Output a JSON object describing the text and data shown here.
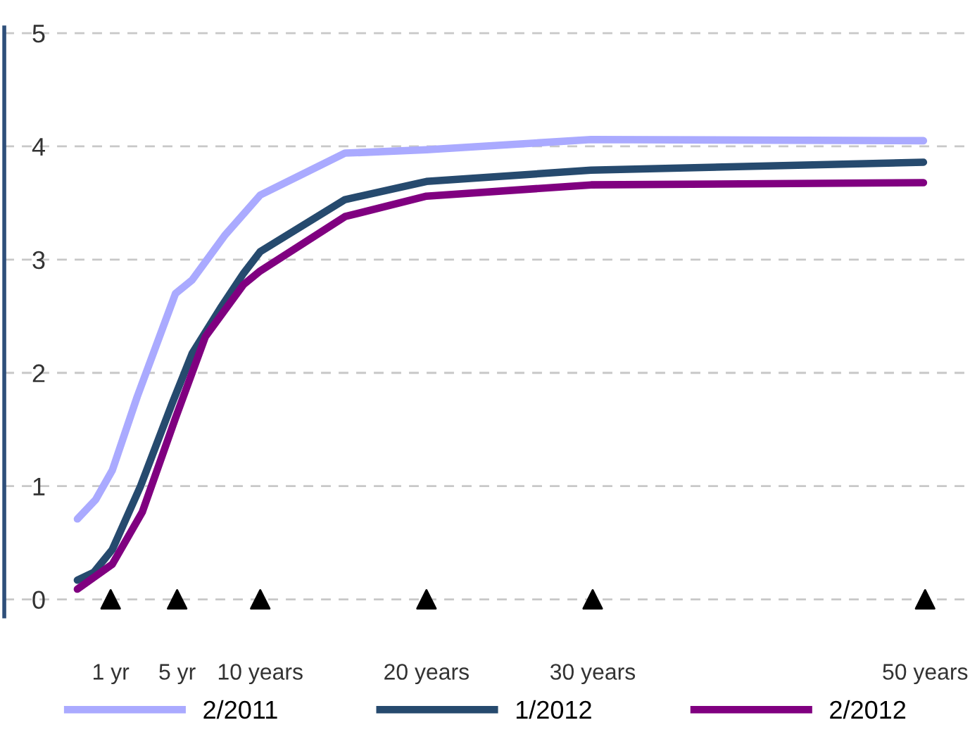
{
  "chart_data": {
    "type": "line",
    "xlim": [
      -5.4,
      52.7
    ],
    "ylim": [
      -0.15,
      5.05
    ],
    "xticks": [
      {
        "value": 1,
        "label": "1 yr"
      },
      {
        "value": 5,
        "label": "5 yr"
      },
      {
        "value": 10,
        "label": "10 years"
      },
      {
        "value": 20,
        "label": "20 years"
      },
      {
        "value": 30,
        "label": "30 years"
      },
      {
        "value": 50,
        "label": "50 years"
      }
    ],
    "yticks": [
      0,
      1,
      2,
      3,
      4,
      5
    ],
    "grid": "y",
    "legend": "bottom",
    "marker": "none",
    "line_style": "solid",
    "series": [
      {
        "name": "2/2011",
        "color": "#aaaaff",
        "x": [
          -1,
          0.1,
          1.1,
          2.6,
          4.9,
          5.9,
          7.9,
          10,
          15.1,
          20,
          29.9,
          49.9
        ],
        "values": [
          0.71,
          0.88,
          1.14,
          1.79,
          2.7,
          2.82,
          3.22,
          3.57,
          3.94,
          3.97,
          4.06,
          4.05
        ]
      },
      {
        "name": "1/2012",
        "color": "#264a6e",
        "x": [
          -1,
          0,
          1.1,
          2.8,
          4.7,
          5.9,
          7.6,
          9,
          10,
          15.1,
          20,
          29.9,
          49.9
        ],
        "values": [
          0.17,
          0.24,
          0.44,
          1.0,
          1.73,
          2.17,
          2.57,
          2.88,
          3.07,
          3.53,
          3.69,
          3.79,
          3.86
        ]
      },
      {
        "name": "2/2012",
        "color": "#800080",
        "x": [
          -1,
          1.1,
          2.9,
          4.9,
          6.7,
          9,
          10,
          15.1,
          20,
          29.9,
          49.9
        ],
        "values": [
          0.09,
          0.31,
          0.77,
          1.6,
          2.32,
          2.78,
          2.9,
          3.38,
          3.56,
          3.66,
          3.68
        ]
      },
      {
        "type": "scatter",
        "marker": "triangle",
        "color": "#000000",
        "x": [
          1,
          5,
          10,
          20,
          30,
          50
        ],
        "values": [
          0,
          0,
          0,
          0,
          0,
          0
        ]
      }
    ]
  }
}
